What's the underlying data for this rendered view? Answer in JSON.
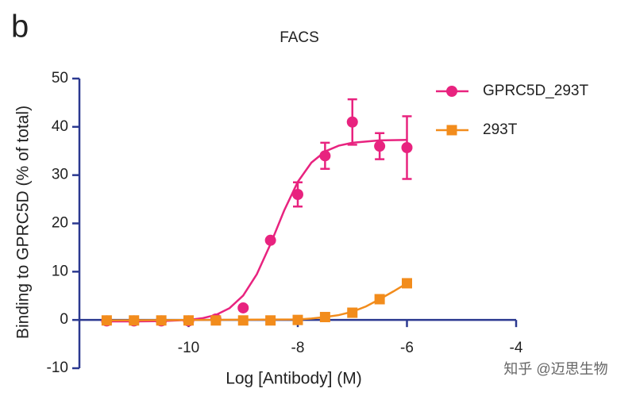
{
  "panel_label": "b",
  "watermark": "知乎 @迈思生物",
  "chart_data": {
    "type": "scatter",
    "title": "FACS",
    "x_label": "Log [Antibody] (M)",
    "y_label": "Binding to GPRC5D (% of total)",
    "x": [
      -11.5,
      -11,
      -10.5,
      -10,
      -9.5,
      -9,
      -8.5,
      -8,
      -7.5,
      -7,
      -6.5,
      -6
    ],
    "series": [
      {
        "name": "GPRC5D_293T",
        "color": "#e8237f",
        "marker": "circle",
        "values": [
          -0.2,
          -0.2,
          -0.2,
          -0.2,
          0.2,
          2.5,
          16.5,
          26,
          34,
          41,
          36,
          35.7
        ],
        "errors": [
          0,
          0,
          0,
          0,
          0,
          0,
          0,
          2.5,
          2.7,
          4.7,
          2.7,
          6.5
        ],
        "fit": {
          "x": [
            -11.5,
            -11,
            -10.5,
            -10,
            -9.75,
            -9.5,
            -9.25,
            -9,
            -8.75,
            -8.5,
            -8.25,
            -8,
            -7.75,
            -7.5,
            -7.25,
            -7,
            -6.5,
            -6
          ],
          "values": [
            -0.3,
            -0.3,
            -0.23,
            0,
            0.35,
            1.04,
            2.44,
            5.05,
            9.47,
            15.7,
            22.65,
            28.6,
            32.6,
            34.9,
            36.1,
            36.7,
            37.2,
            37.3
          ]
        }
      },
      {
        "name": "293T",
        "color": "#f28c1c",
        "marker": "square",
        "values": [
          -0.1,
          -0.1,
          -0.1,
          -0.1,
          -0.1,
          -0.1,
          -0.1,
          0,
          0.6,
          1.5,
          4.3,
          7.6
        ],
        "errors": [
          0,
          0,
          0,
          0,
          0,
          0,
          0,
          0,
          0,
          0,
          0,
          0
        ],
        "fit": {
          "x": [
            -11.5,
            -8,
            -7.75,
            -7.5,
            -7.25,
            -7,
            -6.75,
            -6.5,
            -6.25,
            -6
          ],
          "values": [
            -0.1,
            0.1,
            0.3,
            0.6,
            1.0,
            1.7,
            2.8,
            4.3,
            5.9,
            7.6
          ]
        }
      }
    ],
    "xlim": [
      -12,
      -4
    ],
    "xticks": [
      -10,
      -8,
      -6,
      -4
    ],
    "ylim": [
      -10,
      50
    ],
    "yticks": [
      -10,
      0,
      10,
      20,
      30,
      40,
      50
    ],
    "legend": "upper right"
  }
}
